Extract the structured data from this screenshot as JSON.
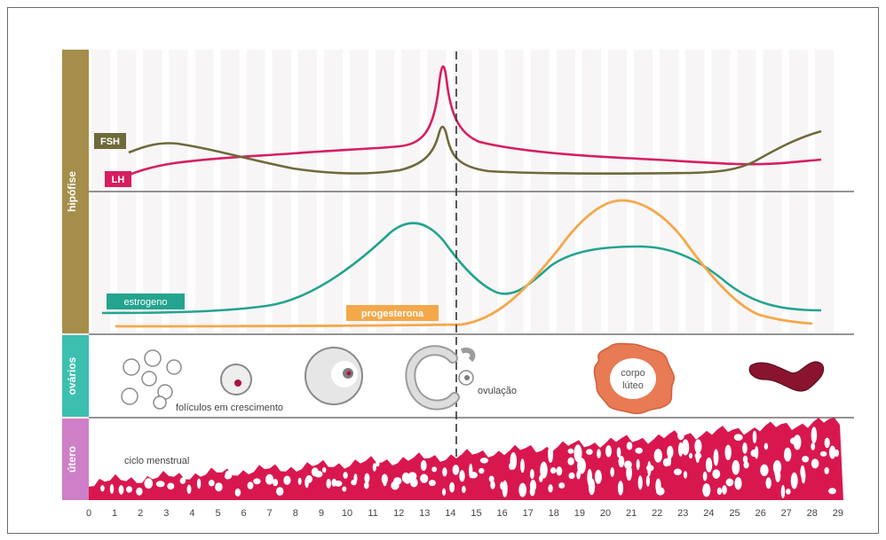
{
  "sections": {
    "hipofise": "hipófise",
    "ovarios": "ovários",
    "utero": "útero"
  },
  "hormones": {
    "fsh": "FSH",
    "lh": "LH",
    "estrogeno": "estrogeno",
    "progesterona": "progesterona"
  },
  "ovary_labels": {
    "foliculos": "folículos em crescimento",
    "ovulacao": "ovulação",
    "corpo_luteo_line1": "corpo",
    "corpo_luteo_line2": "lúteo"
  },
  "uterus_label": "ciclo menstrual",
  "x_axis_ticks": [
    "0",
    "1",
    "2",
    "3",
    "4",
    "5",
    "6",
    "7",
    "8",
    "9",
    "10",
    "11",
    "12",
    "13",
    "14",
    "15",
    "16",
    "17",
    "18",
    "19",
    "20",
    "21",
    "22",
    "23",
    "24",
    "25",
    "26",
    "27",
    "28",
    "29"
  ],
  "colors": {
    "hipofise_band": "#a58e4a",
    "ovarios_band": "#3dbfb0",
    "utero_band": "#cf7fc7",
    "fsh": "#6e6a3a",
    "lh": "#d61e61",
    "estrogeno": "#23a48e",
    "progesterona": "#f4a84a",
    "uterus_tissue": "#d9174f"
  }
}
